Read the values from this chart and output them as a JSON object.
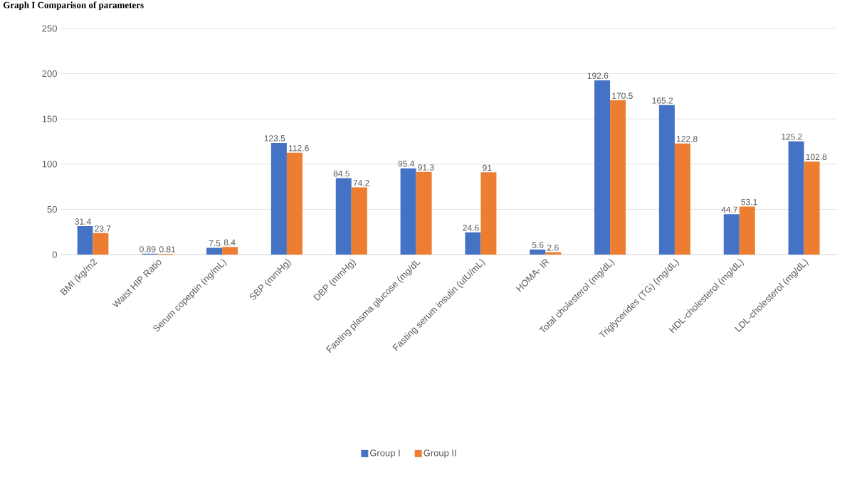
{
  "chart_data": {
    "type": "bar",
    "title": "Graph I Comparison of parameters",
    "categories": [
      "BMI (kg/m2",
      "Waist HIP Ratio",
      "Serum copeptin (ng/mL)",
      "SBP (mmHg)",
      "DBP (mmHg)",
      "Fasting plasma glucose (mg/dL",
      "Fasting serum insulin (uIU/mL)",
      "HOMA- IR",
      "Total cholesterol (mg/dL)",
      "Triglycerides (TG) (mg/dL)",
      "HDL-cholesterol (mg/dL)",
      "LDL-cholesterol (mg/dL)"
    ],
    "series": [
      {
        "name": "Group I",
        "color": "#4472c4",
        "values": [
          31.4,
          0.89,
          7.5,
          123.5,
          84.5,
          95.4,
          24.6,
          5.6,
          192.6,
          165.2,
          44.7,
          125.2
        ]
      },
      {
        "name": "Group II",
        "color": "#ed7d31",
        "values": [
          23.7,
          0.81,
          8.4,
          112.6,
          74.2,
          91.3,
          91,
          2.6,
          170.5,
          122.8,
          53.1,
          102.8
        ]
      }
    ],
    "ylim": [
      0,
      250
    ],
    "yticks": [
      0,
      50,
      100,
      150,
      200,
      250
    ],
    "grid": "y",
    "legend": "bottom",
    "data_labels": true
  }
}
